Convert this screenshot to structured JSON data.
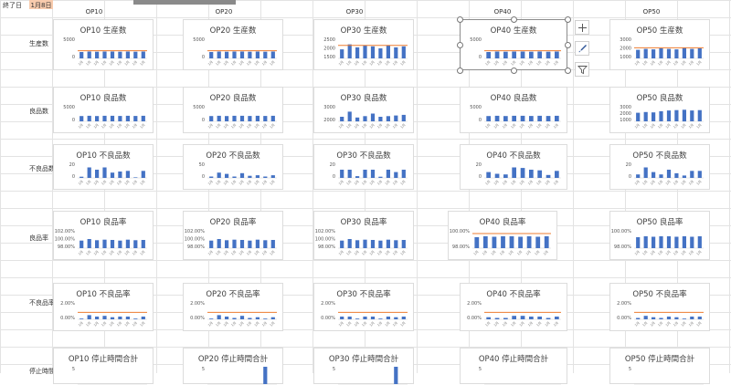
{
  "sheet": {
    "end_label": "終了日",
    "end_value": "1月8日"
  },
  "op_headers": [
    "OP10",
    "OP20",
    "OP30",
    "OP40",
    "OP50"
  ],
  "row_labels": [
    "生産数",
    "良品数",
    "不良品数",
    "良品率",
    "不良品率",
    "停止時間"
  ],
  "charts": [
    {
      "row": 0,
      "op": 0,
      "title": "OP10 生産数",
      "ticks": [
        "5000",
        "0"
      ],
      "ymin": 0,
      "ymax": 5000,
      "values": [
        1600,
        1700,
        1650,
        1700,
        1700,
        1650,
        1700,
        1650,
        1700
      ],
      "target": 1900,
      "show_target": true,
      "target_color": "#ed7d31"
    },
    {
      "row": 0,
      "op": 1,
      "title": "OP20 生産数",
      "ticks": [
        "5000",
        "0"
      ],
      "ymin": 0,
      "ymax": 5000,
      "values": [
        1600,
        1700,
        1650,
        1700,
        1700,
        1650,
        1700,
        1650,
        1700
      ],
      "target": 1900,
      "show_target": true,
      "target_color": "#ed7d31"
    },
    {
      "row": 0,
      "op": 2,
      "title": "OP30 生産数",
      "ticks": [
        "2500",
        "2000",
        "1500"
      ],
      "ymin": 1500,
      "ymax": 2500,
      "values": [
        1950,
        2200,
        2050,
        2150,
        2100,
        2000,
        2150,
        2050,
        2100
      ],
      "target": 2150,
      "show_target": true,
      "target_color": "#ed7d31"
    },
    {
      "row": 0,
      "op": 3,
      "title": "OP40 生産数",
      "ticks": [
        "5000",
        "0"
      ],
      "ymin": 0,
      "ymax": 5000,
      "values": [
        1600,
        1700,
        1650,
        1700,
        1700,
        1650,
        1700,
        1650,
        1700
      ],
      "target": 1900,
      "show_target": true,
      "target_color": "#ed7d31"
    },
    {
      "row": 0,
      "op": 4,
      "title": "OP50 生産数",
      "ticks": [
        "3000",
        "2000",
        "1000"
      ],
      "ymin": 1000,
      "ymax": 3000,
      "values": [
        1850,
        1950,
        1900,
        2000,
        1950,
        1900,
        2050,
        1950,
        2000
      ],
      "target": 2050,
      "show_target": true,
      "target_color": "#ed7d31"
    },
    {
      "row": 1,
      "op": 0,
      "title": "OP10 良品数",
      "ticks": [
        "5000",
        "0"
      ],
      "ymin": 0,
      "ymax": 5000,
      "values": [
        1700,
        1800,
        1700,
        1800,
        1800,
        1750,
        1800,
        1750,
        1800
      ],
      "show_target": false
    },
    {
      "row": 1,
      "op": 1,
      "title": "OP20 良品数",
      "ticks": [
        "5000",
        "0"
      ],
      "ymin": 0,
      "ymax": 5000,
      "values": [
        1700,
        1800,
        1700,
        1800,
        1800,
        1750,
        1800,
        1750,
        1800
      ],
      "show_target": false
    },
    {
      "row": 1,
      "op": 2,
      "title": "OP30 良品数",
      "ticks": [
        "3000",
        "2000"
      ],
      "ymin": 1800,
      "ymax": 3000,
      "values": [
        2150,
        2550,
        2100,
        2200,
        2400,
        2150,
        2200,
        2250,
        2300
      ],
      "show_target": false
    },
    {
      "row": 1,
      "op": 3,
      "title": "OP40 良品数",
      "ticks": [
        "5000",
        "0"
      ],
      "ymin": 0,
      "ymax": 5000,
      "values": [
        1700,
        1800,
        1700,
        1800,
        1800,
        1750,
        1800,
        1750,
        1800
      ],
      "show_target": false
    },
    {
      "row": 1,
      "op": 4,
      "title": "OP50 良品数",
      "ticks": [
        "3000",
        "2000",
        "1000"
      ],
      "ymin": 1000,
      "ymax": 3000,
      "values": [
        2100,
        2200,
        2150,
        2300,
        2400,
        2450,
        2500,
        2400,
        2450
      ],
      "show_target": false
    },
    {
      "row": 2,
      "op": 0,
      "title": "OP10 不良品数",
      "ticks": [
        "20",
        "0"
      ],
      "ymin": 0,
      "ymax": 25,
      "values": [
        2,
        18,
        14,
        18,
        9,
        11,
        12,
        1,
        12
      ],
      "show_target": false
    },
    {
      "row": 2,
      "op": 1,
      "title": "OP20 不良品数",
      "ticks": [
        "50",
        "0"
      ],
      "ymin": 0,
      "ymax": 55,
      "values": [
        5,
        20,
        15,
        5,
        18,
        8,
        10,
        5,
        10
      ],
      "show_target": false
    },
    {
      "row": 2,
      "op": 2,
      "title": "OP30 不良品数",
      "ticks": [
        "20",
        "0"
      ],
      "ymin": 0,
      "ymax": 25,
      "values": [
        14,
        14,
        3,
        14,
        14,
        2,
        14,
        10,
        14
      ],
      "show_target": false
    },
    {
      "row": 2,
      "op": 3,
      "title": "OP40 不良品数",
      "ticks": [
        "20",
        "0"
      ],
      "ymin": 0,
      "ymax": 25,
      "values": [
        10,
        7,
        6,
        18,
        17,
        14,
        13,
        5,
        12
      ],
      "show_target": false
    },
    {
      "row": 2,
      "op": 4,
      "title": "OP50 不良品数",
      "ticks": [
        "20",
        "0"
      ],
      "ymin": 0,
      "ymax": 25,
      "values": [
        6,
        18,
        10,
        6,
        14,
        8,
        4,
        12,
        12
      ],
      "show_target": false
    },
    {
      "row": 3,
      "op": 0,
      "title": "OP10 良品率",
      "ticks": [
        "102.00%",
        "100.00%",
        "98.00%"
      ],
      "ymin": 97,
      "ymax": 103,
      "values": [
        99.5,
        100.0,
        99.6,
        99.8,
        99.7,
        99.5,
        99.8,
        99.6,
        99.7
      ],
      "show_target": false
    },
    {
      "row": 3,
      "op": 1,
      "title": "OP20 良品率",
      "ticks": [
        "102.00%",
        "100.00%",
        "98.00%"
      ],
      "ymin": 97,
      "ymax": 103,
      "values": [
        99.5,
        100.0,
        99.6,
        99.8,
        99.7,
        99.5,
        99.8,
        99.6,
        99.7
      ],
      "show_target": false
    },
    {
      "row": 3,
      "op": 2,
      "title": "OP30 良品率",
      "ticks": [
        "102.00%",
        "100.00%",
        "98.00%"
      ],
      "ymin": 97,
      "ymax": 103,
      "values": [
        99.5,
        100.0,
        99.6,
        99.8,
        99.7,
        99.5,
        99.8,
        99.6,
        99.7
      ],
      "show_target": false
    },
    {
      "row": 3,
      "op": 3,
      "title": "OP40 良品率",
      "ticks": [
        "100.00%",
        "98.00%"
      ],
      "ymin": 97,
      "ymax": 101,
      "values": [
        99.4,
        99.6,
        99.5,
        99.6,
        99.6,
        99.5,
        99.6,
        99.5,
        99.6
      ],
      "target": 100.2,
      "show_target": true,
      "target_color": "#ed7d31"
    },
    {
      "row": 3,
      "op": 4,
      "title": "OP50 良品率",
      "ticks": [
        "100.00%",
        "98.00%"
      ],
      "ymin": 97,
      "ymax": 101,
      "values": [
        99.4,
        99.6,
        99.5,
        99.6,
        99.6,
        99.5,
        99.6,
        99.5,
        99.6
      ],
      "show_target": false
    },
    {
      "row": 4,
      "op": 0,
      "title": "OP10 不良品率",
      "ticks": [
        "2.00%",
        "0.00%"
      ],
      "ymin": 0,
      "ymax": 2.5,
      "values": [
        0.1,
        0.6,
        0.4,
        0.5,
        0.3,
        0.4,
        0.4,
        0.1,
        0.4
      ],
      "target": 1.0,
      "show_target": true,
      "target_color": "#ed7d31"
    },
    {
      "row": 4,
      "op": 1,
      "title": "OP20 不良品率",
      "ticks": [
        "2.00%",
        "0.00%"
      ],
      "ymin": 0,
      "ymax": 2.5,
      "values": [
        0.1,
        0.6,
        0.4,
        0.2,
        0.5,
        0.2,
        0.3,
        0.1,
        0.3
      ],
      "target": 1.0,
      "show_target": true,
      "target_color": "#ed7d31"
    },
    {
      "row": 4,
      "op": 2,
      "title": "OP30 不良品率",
      "ticks": [
        "2.00%",
        "0.00%"
      ],
      "ymin": 0,
      "ymax": 2.5,
      "values": [
        0.4,
        0.4,
        0.1,
        0.4,
        0.4,
        0.1,
        0.4,
        0.3,
        0.4
      ],
      "target": 1.0,
      "show_target": true,
      "target_color": "#ed7d31"
    },
    {
      "row": 4,
      "op": 3,
      "title": "OP40 不良品率",
      "ticks": [
        "2.00%",
        "0.00%"
      ],
      "ymin": 0,
      "ymax": 2.5,
      "values": [
        0.3,
        0.2,
        0.2,
        0.5,
        0.5,
        0.4,
        0.4,
        0.2,
        0.4
      ],
      "target": 1.0,
      "show_target": true,
      "target_color": "#ed7d31"
    },
    {
      "row": 4,
      "op": 4,
      "title": "OP50 不良品率",
      "ticks": [
        "2.00%",
        "0.00%"
      ],
      "ymin": 0,
      "ymax": 2.5,
      "values": [
        0.2,
        0.5,
        0.3,
        0.2,
        0.4,
        0.3,
        0.1,
        0.4,
        0.4
      ],
      "target": 1.0,
      "show_target": true,
      "target_color": "#ed7d31"
    },
    {
      "row": 5,
      "op": 0,
      "title": "OP10 停止時間合計",
      "ticks": [
        "5"
      ],
      "ymin": 0,
      "ymax": 5,
      "values": [
        0,
        0,
        0,
        0,
        0,
        0,
        0,
        0,
        0
      ],
      "show_target": false
    },
    {
      "row": 5,
      "op": 1,
      "title": "OP20 停止時間合計",
      "ticks": [
        "5"
      ],
      "ymin": 0,
      "ymax": 5,
      "values": [
        0,
        0,
        0,
        0,
        0,
        0,
        0,
        5,
        0
      ],
      "show_target": false
    },
    {
      "row": 5,
      "op": 2,
      "title": "OP30 停止時間合計",
      "ticks": [
        "5"
      ],
      "ymin": 0,
      "ymax": 5,
      "values": [
        0,
        0,
        0,
        0,
        0,
        0,
        0,
        5,
        0
      ],
      "show_target": false
    },
    {
      "row": 5,
      "op": 3,
      "title": "OP40 停止時間合計",
      "ticks": [
        "5"
      ],
      "ymin": 0,
      "ymax": 5,
      "values": [
        0,
        0,
        0,
        0,
        0,
        0,
        0,
        0,
        0
      ],
      "show_target": false
    },
    {
      "row": 5,
      "op": 4,
      "title": "OP50 停止時間合計",
      "ticks": [
        "5"
      ],
      "ymin": 0,
      "ymax": 5,
      "values": [
        0,
        0,
        0,
        0,
        0,
        0,
        0,
        0,
        0
      ],
      "show_target": false
    }
  ],
  "x_tick_label": "1月",
  "bar_color": "#4472c4",
  "selected_chart": {
    "row": 0,
    "op": 3
  },
  "chart_tools": [
    {
      "name": "chart-elements-button",
      "icon": "plus-icon"
    },
    {
      "name": "chart-styles-button",
      "icon": "brush-icon"
    },
    {
      "name": "chart-filters-button",
      "icon": "funnel-icon"
    }
  ]
}
